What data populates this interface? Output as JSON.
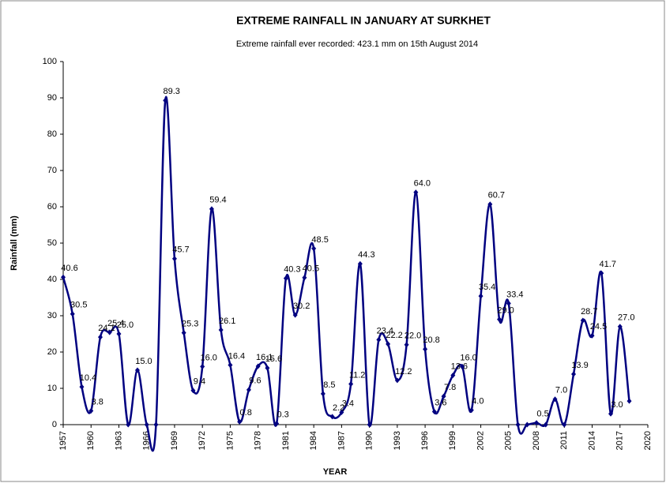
{
  "chart_data": {
    "type": "line",
    "title": "EXTREME RAINFALL IN JANUARY AT SURKHET",
    "subtitle": "Extreme rainfall  ever  recorded:  423.1  mm on 15th August 2014",
    "x_label": "YEAR",
    "y_label": "Rainfall (mm)",
    "x": [
      1957,
      1958,
      1959,
      1960,
      1961,
      1962,
      1963,
      1964,
      1965,
      1966,
      1967,
      1968,
      1969,
      1970,
      1971,
      1972,
      1973,
      1974,
      1975,
      1976,
      1977,
      1978,
      1979,
      1980,
      1981,
      1982,
      1983,
      1984,
      1985,
      1986,
      1987,
      1988,
      1989,
      1990,
      1991,
      1992,
      1993,
      1994,
      1995,
      1996,
      1997,
      1998,
      1999,
      2000,
      2001,
      2002,
      2003,
      2004,
      2005,
      2006,
      2007,
      2008,
      2009,
      2010,
      2011,
      2012,
      2013,
      2014,
      2015,
      2016,
      2017,
      2018
    ],
    "series": [
      {
        "name": "Rainfall",
        "color": "#000080",
        "values": [
          40.6,
          30.5,
          10.4,
          3.8,
          24.1,
          25.4,
          25.0,
          0,
          15.0,
          0,
          0,
          89.3,
          45.7,
          25.3,
          9.4,
          16.0,
          59.4,
          26.1,
          16.4,
          0.8,
          9.6,
          16.1,
          15.6,
          0.3,
          40.3,
          30.2,
          40.5,
          48.5,
          8.5,
          2.2,
          3.4,
          11.2,
          44.3,
          0,
          23.4,
          22.2,
          12.2,
          22.0,
          64.0,
          20.8,
          3.6,
          7.8,
          13.6,
          16.0,
          4.0,
          35.4,
          60.7,
          29.0,
          33.4,
          0,
          0,
          0.5,
          0,
          7.0,
          0,
          13.9,
          28.7,
          24.5,
          41.7,
          3.0,
          27.0,
          6.5
        ],
        "value_labels": [
          "40.6",
          "30.5",
          "10.4",
          "3.8",
          "24.1",
          "25.4",
          "25.0",
          null,
          "15.0",
          null,
          null,
          "89.3",
          "45.7",
          "25.3",
          "9.4",
          "16.0",
          "59.4",
          "26.1",
          "16.4",
          "0.8",
          "9.6",
          "16.1",
          "15.6",
          "0.3",
          "40.3",
          "30.2",
          "40.5",
          "48.5",
          "8.5",
          "2.2",
          "3.4",
          "11.2",
          "44.3",
          null,
          "23.4",
          "22.2",
          "12.2",
          "22.0",
          "64.0",
          "20.8",
          "3.6",
          "7.8",
          "13.6",
          "16.0",
          "4.0",
          "35.4",
          "60.7",
          "29.0",
          "33.4",
          null,
          null,
          "0.5",
          null,
          "7.0",
          null,
          "13.9",
          "28.7",
          "24.5",
          "41.7",
          "3.0",
          "27.0",
          null
        ]
      }
    ],
    "xlim": [
      1957,
      2020
    ],
    "xticks": [
      1957,
      1960,
      1963,
      1966,
      1969,
      1972,
      1975,
      1978,
      1981,
      1984,
      1987,
      1990,
      1993,
      1996,
      1999,
      2002,
      2005,
      2008,
      2011,
      2014,
      2017,
      2020
    ],
    "ylim": [
      0,
      100
    ],
    "yticks": [
      0,
      10,
      20,
      30,
      40,
      50,
      60,
      70,
      80,
      90,
      100
    ],
    "grid": false
  }
}
